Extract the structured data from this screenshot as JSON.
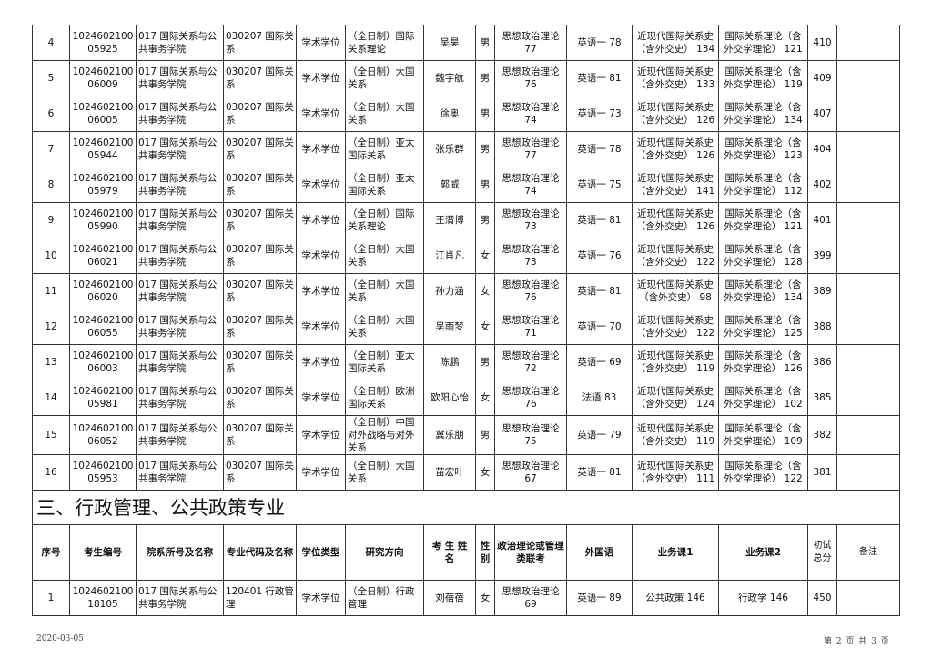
{
  "rows_top": [
    {
      "no": "4",
      "id": [
        "1024602100",
        "05925"
      ],
      "dept": "017 国际关系与公共事务学院",
      "major": "030207 国际关系",
      "degree": "学术学位",
      "direction": "（全日制）国际关系理论",
      "name": "吴昊",
      "sex": "男",
      "politics": [
        "思想政治理论",
        "77"
      ],
      "lang": "英语一 78",
      "course1": [
        "近现代国际关系史",
        "（含外交史） 134"
      ],
      "course2": [
        "国际关系理论（含",
        "外交学理论） 121"
      ],
      "total": "410",
      "note": ""
    },
    {
      "no": "5",
      "id": [
        "1024602100",
        "06009"
      ],
      "dept": "017 国际关系与公共事务学院",
      "major": "030207 国际关系",
      "degree": "学术学位",
      "direction": "（全日制）大国关系",
      "name": "魏宇航",
      "sex": "男",
      "politics": [
        "思想政治理论",
        "76"
      ],
      "lang": "英语一 81",
      "course1": [
        "近现代国际关系史",
        "（含外交史） 133"
      ],
      "course2": [
        "国际关系理论（含",
        "外交学理论） 119"
      ],
      "total": "409",
      "note": ""
    },
    {
      "no": "6",
      "id": [
        "1024602100",
        "06005"
      ],
      "dept": "017 国际关系与公共事务学院",
      "major": "030207 国际关系",
      "degree": "学术学位",
      "direction": "（全日制）大国关系",
      "name": "徐奥",
      "sex": "男",
      "politics": [
        "思想政治理论",
        "74"
      ],
      "lang": "英语一 73",
      "course1": [
        "近现代国际关系史",
        "（含外交史） 126"
      ],
      "course2": [
        "国际关系理论（含",
        "外交学理论） 134"
      ],
      "total": "407",
      "note": ""
    },
    {
      "no": "7",
      "id": [
        "1024602100",
        "05944"
      ],
      "dept": "017 国际关系与公共事务学院",
      "major": "030207 国际关系",
      "degree": "学术学位",
      "direction": "（全日制）亚太国际关系",
      "name": "张乐群",
      "sex": "男",
      "politics": [
        "思想政治理论",
        "77"
      ],
      "lang": "英语一 78",
      "course1": [
        "近现代国际关系史",
        "（含外交史） 126"
      ],
      "course2": [
        "国际关系理论（含",
        "外交学理论） 123"
      ],
      "total": "404",
      "note": ""
    },
    {
      "no": "8",
      "id": [
        "1024602100",
        "05979"
      ],
      "dept": "017 国际关系与公共事务学院",
      "major": "030207 国际关系",
      "degree": "学术学位",
      "direction": "（全日制）亚太国际关系",
      "name": "郭威",
      "sex": "男",
      "politics": [
        "思想政治理论",
        "74"
      ],
      "lang": "英语一 75",
      "course1": [
        "近现代国际关系史",
        "（含外交史） 141"
      ],
      "course2": [
        "国际关系理论（含",
        "外交学理论） 112"
      ],
      "total": "402",
      "note": ""
    },
    {
      "no": "9",
      "id": [
        "1024602100",
        "05990"
      ],
      "dept": "017 国际关系与公共事务学院",
      "major": "030207 国际关系",
      "degree": "学术学位",
      "direction": "（全日制）国际关系理论",
      "name": "王潸博",
      "sex": "男",
      "politics": [
        "思想政治理论",
        "73"
      ],
      "lang": "英语一 81",
      "course1": [
        "近现代国际关系史",
        "（含外交史） 126"
      ],
      "course2": [
        "国际关系理论（含",
        "外交学理论） 121"
      ],
      "total": "401",
      "note": ""
    },
    {
      "no": "10",
      "id": [
        "1024602100",
        "06021"
      ],
      "dept": "017 国际关系与公共事务学院",
      "major": "030207 国际关系",
      "degree": "学术学位",
      "direction": "（全日制）大国关系",
      "name": "江肖凡",
      "sex": "女",
      "politics": [
        "思想政治理论",
        "73"
      ],
      "lang": "英语一 76",
      "course1": [
        "近现代国际关系史",
        "（含外交史） 122"
      ],
      "course2": [
        "国际关系理论（含",
        "外交学理论） 128"
      ],
      "total": "399",
      "note": ""
    },
    {
      "no": "11",
      "id": [
        "1024602100",
        "06020"
      ],
      "dept": "017 国际关系与公共事务学院",
      "major": "030207 国际关系",
      "degree": "学术学位",
      "direction": "（全日制）大国关系",
      "name": "孙力涵",
      "sex": "女",
      "politics": [
        "思想政治理论",
        "76"
      ],
      "lang": "英语一 81",
      "course1": [
        "近现代国际关系史",
        "（含外交史） 98"
      ],
      "course2": [
        "国际关系理论（含",
        "外交学理论） 134"
      ],
      "total": "389",
      "note": ""
    },
    {
      "no": "12",
      "id": [
        "1024602100",
        "06055"
      ],
      "dept": "017 国际关系与公共事务学院",
      "major": "030207 国际关系",
      "degree": "学术学位",
      "direction": "（全日制）大国关系",
      "name": "吴雨梦",
      "sex": "女",
      "politics": [
        "思想政治理论",
        "71"
      ],
      "lang": "英语一 70",
      "course1": [
        "近现代国际关系史",
        "（含外交史） 122"
      ],
      "course2": [
        "国际关系理论（含",
        "外交学理论） 125"
      ],
      "total": "388",
      "note": ""
    },
    {
      "no": "13",
      "id": [
        "1024602100",
        "06003"
      ],
      "dept": "017 国际关系与公共事务学院",
      "major": "030207 国际关系",
      "degree": "学术学位",
      "direction": "（全日制）亚太国际关系",
      "name": "陈鹏",
      "sex": "男",
      "politics": [
        "思想政治理论",
        "72"
      ],
      "lang": "英语一 69",
      "course1": [
        "近现代国际关系史",
        "（含外交史） 119"
      ],
      "course2": [
        "国际关系理论（含",
        "外交学理论） 126"
      ],
      "total": "386",
      "note": ""
    },
    {
      "no": "14",
      "id": [
        "1024602100",
        "05981"
      ],
      "dept": "017 国际关系与公共事务学院",
      "major": "030207 国际关系",
      "degree": "学术学位",
      "direction": "（全日制）欧洲国际关系",
      "name": "欧阳心怡",
      "sex": "女",
      "politics": [
        "思想政治理论",
        "76"
      ],
      "lang": "法语 83",
      "course1": [
        "近现代国际关系史",
        "（含外交史） 124"
      ],
      "course2": [
        "国际关系理论（含",
        "外交学理论） 102"
      ],
      "total": "385",
      "note": ""
    },
    {
      "no": "15",
      "id": [
        "1024602100",
        "06052"
      ],
      "dept": "017 国际关系与公共事务学院",
      "major": "030207 国际关系",
      "degree": "学术学位",
      "direction": "（全日制）中国对外战略与对外关系",
      "name": "冀乐朋",
      "sex": "男",
      "politics": [
        "思想政治理论",
        "75"
      ],
      "lang": "英语一 79",
      "course1": [
        "近现代国际关系史",
        "（含外交史） 119"
      ],
      "course2": [
        "国际关系理论（含",
        "外交学理论） 109"
      ],
      "total": "382",
      "note": ""
    },
    {
      "no": "16",
      "id": [
        "1024602100",
        "05953"
      ],
      "dept": "017 国际关系与公共事务学院",
      "major": "030207 国际关系",
      "degree": "学术学位",
      "direction": "（全日制）大国关系",
      "name": "苗宏叶",
      "sex": "女",
      "politics": [
        "思想政治理论",
        "67"
      ],
      "lang": "英语一 81",
      "course1": [
        "近现代国际关系史",
        "（含外交史） 111"
      ],
      "course2": [
        "国际关系理论（含",
        "外交学理论） 122"
      ],
      "total": "381",
      "note": ""
    }
  ],
  "section_title": "三、行政管理、公共政策专业",
  "headers": [
    "序号",
    "考生编号",
    "院系所号及名称",
    "专业代码及名称",
    "学位类型",
    "研究方向",
    "考 生 姓 名",
    "性别",
    "政治理论或管理类联考",
    "外国语",
    "业务课1",
    "业务课2",
    "初试总分",
    "备注"
  ],
  "rows_bottom": [
    {
      "no": "1",
      "id": [
        "1024602100",
        "18105"
      ],
      "dept": "017 国际关系与公共事务学院",
      "major": "120401 行政管理",
      "degree": "学术学位",
      "direction": "（全日制）行政管理",
      "name": "刘蓓蓓",
      "sex": "女",
      "politics": [
        "思想政治理论",
        "69"
      ],
      "lang": "英语一 89",
      "course1": [
        "公共政策 146"
      ],
      "course2": [
        "行政学 146"
      ],
      "total": "450",
      "note": ""
    }
  ],
  "footer": {
    "date": "2020-03-05",
    "page": "第 2 页 共 3 页"
  }
}
